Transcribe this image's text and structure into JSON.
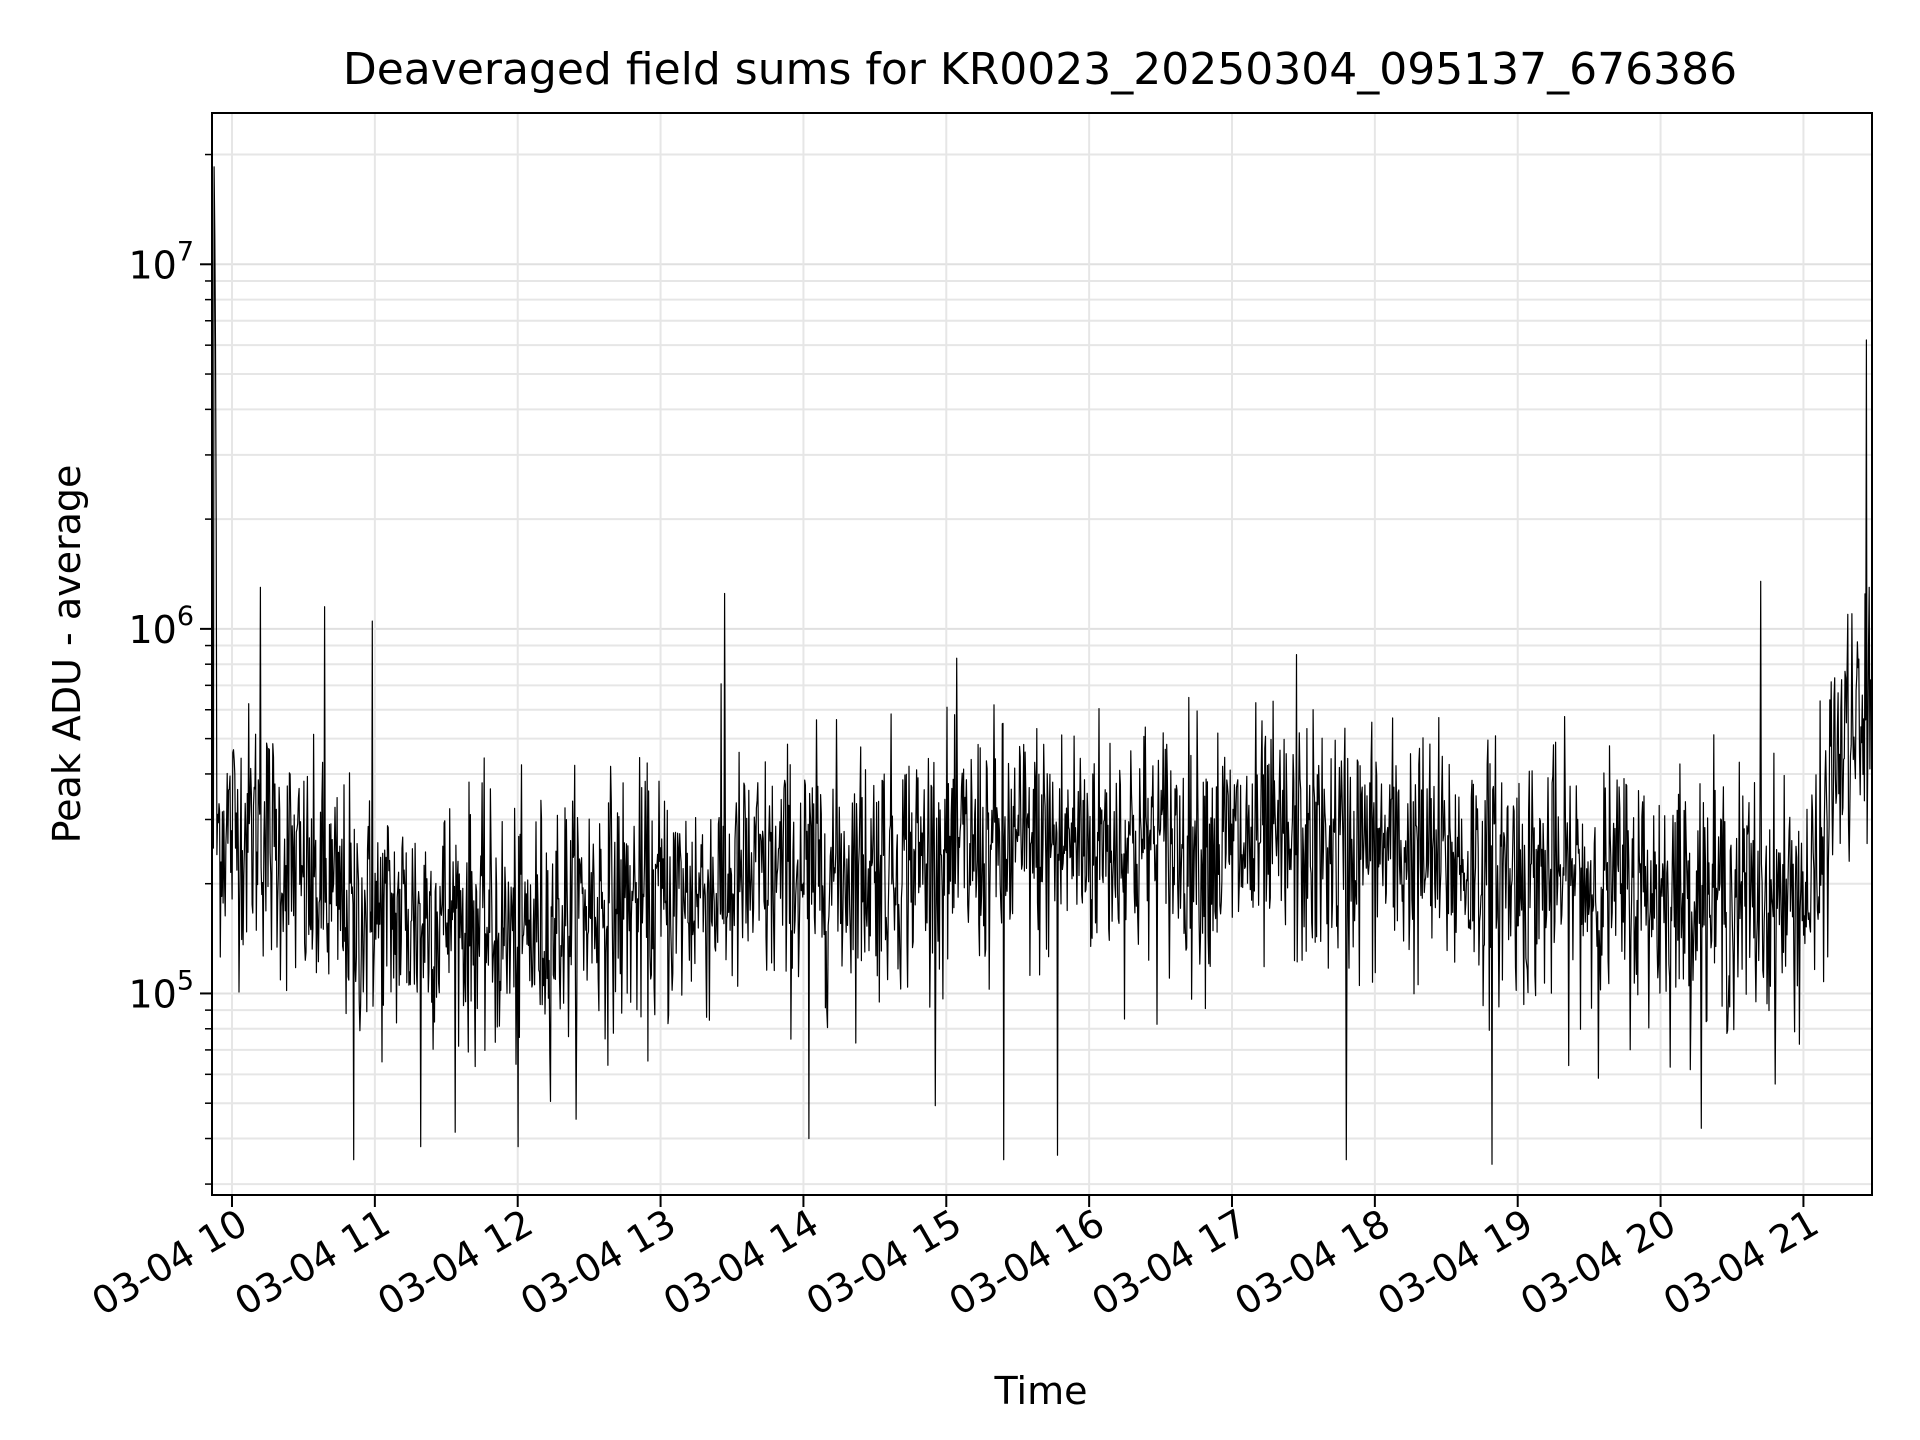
{
  "chart_data": {
    "type": "line",
    "title": "Deaveraged field sums for KR0023_20250304_095137_676386",
    "xlabel": "Time",
    "ylabel": "Peak ADU - average",
    "yscale": "log",
    "ylim": [
      28000,
      26000000
    ],
    "xlim_hours": [
      9.86,
      21.48
    ],
    "grid": true,
    "line_color": "#000000",
    "x_ticks": [
      {
        "hour": 10,
        "label": "03-04 10"
      },
      {
        "hour": 11,
        "label": "03-04 11"
      },
      {
        "hour": 12,
        "label": "03-04 12"
      },
      {
        "hour": 13,
        "label": "03-04 13"
      },
      {
        "hour": 14,
        "label": "03-04 14"
      },
      {
        "hour": 15,
        "label": "03-04 15"
      },
      {
        "hour": 16,
        "label": "03-04 16"
      },
      {
        "hour": 17,
        "label": "03-04 17"
      },
      {
        "hour": 18,
        "label": "03-04 18"
      },
      {
        "hour": 19,
        "label": "03-04 19"
      },
      {
        "hour": 20,
        "label": "03-04 20"
      },
      {
        "hour": 21,
        "label": "03-04 21"
      }
    ],
    "y_ticks": [
      {
        "value": 100000,
        "base": "10",
        "exp": "5"
      },
      {
        "value": 1000000,
        "base": "10",
        "exp": "6"
      },
      {
        "value": 10000000,
        "base": "10",
        "exp": "7"
      }
    ],
    "series": [
      {
        "name": "Peak ADU - average",
        "generator": "dense noisy time series, one sample per ~5 s",
        "n_points": 2400,
        "baseline_log10": [
          [
            9.86,
            5.45
          ],
          [
            10.2,
            5.45
          ],
          [
            10.5,
            5.3
          ],
          [
            11.0,
            5.2
          ],
          [
            11.5,
            5.22
          ],
          [
            12.0,
            5.15
          ],
          [
            12.5,
            5.25
          ],
          [
            13.0,
            5.25
          ],
          [
            13.5,
            5.3
          ],
          [
            14.0,
            5.33
          ],
          [
            15.0,
            5.38
          ],
          [
            16.0,
            5.42
          ],
          [
            17.0,
            5.4
          ],
          [
            18.0,
            5.4
          ],
          [
            19.0,
            5.33
          ],
          [
            20.0,
            5.28
          ],
          [
            20.8,
            5.25
          ],
          [
            21.1,
            5.28
          ],
          [
            21.2,
            5.6
          ],
          [
            21.3,
            5.7
          ],
          [
            21.48,
            5.72
          ]
        ],
        "noise_sigma_log10": 0.17,
        "spikes": [
          {
            "hour": 9.875,
            "value": 18500000
          },
          {
            "hour": 9.88,
            "value": 12000000
          },
          {
            "hour": 9.885,
            "value": 6000000
          },
          {
            "hour": 9.89,
            "value": 1900000
          },
          {
            "hour": 10.2,
            "value": 1300000
          },
          {
            "hour": 10.65,
            "value": 1150000
          },
          {
            "hour": 10.98,
            "value": 1050000
          },
          {
            "hour": 13.45,
            "value": 1250000
          },
          {
            "hour": 17.45,
            "value": 850000
          },
          {
            "hour": 20.7,
            "value": 1350000
          },
          {
            "hour": 21.44,
            "value": 6200000
          },
          {
            "hour": 21.46,
            "value": 1300000
          }
        ],
        "dips": [
          {
            "hour": 10.85,
            "value": 35000
          },
          {
            "hour": 11.32,
            "value": 38000
          },
          {
            "hour": 12.0,
            "value": 38000
          },
          {
            "hour": 14.04,
            "value": 40000
          },
          {
            "hour": 15.4,
            "value": 35000
          },
          {
            "hour": 15.78,
            "value": 36000
          },
          {
            "hour": 17.8,
            "value": 35000
          },
          {
            "hour": 18.82,
            "value": 34000
          }
        ]
      }
    ]
  }
}
